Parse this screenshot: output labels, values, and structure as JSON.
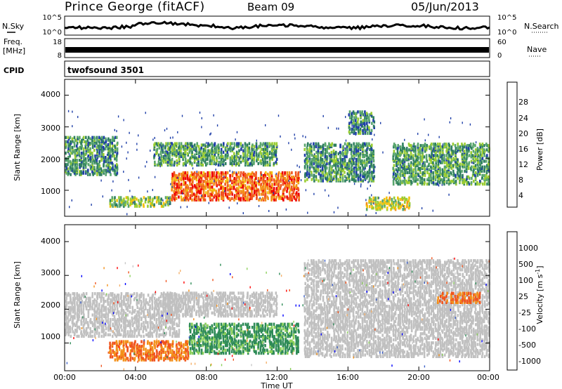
{
  "header": {
    "station": "Prince George (fitACF)",
    "beam": "Beam 09",
    "date": "05/Jun/2013"
  },
  "panels": {
    "nsky_label": "N.Sky",
    "nsearch_label": "N.Search",
    "freq_label_1": "Freq.",
    "freq_label_2": "[MHz]",
    "nave_label": "Nave",
    "cpid_label": "CPID",
    "cpid_value": "twofsound 3501",
    "noise_ticks": [
      "10^5",
      "10^0"
    ],
    "freq_ticks": [
      "18",
      "8"
    ],
    "nave_ticks": [
      "60",
      "0"
    ]
  },
  "colors": {
    "power_scale": [
      "#0000ff",
      "#1f3fa8",
      "#2f7f5f",
      "#5aa66e",
      "#9acd32",
      "#f4c20d",
      "#f39019",
      "#f0541e",
      "#ee0000"
    ],
    "velocity_scale": [
      "#ff0000",
      "#f0541e",
      "#f39019",
      "#f5b06a",
      "#c8c8c8",
      "#8bd05a",
      "#2e8b57",
      "#3b5fc8",
      "#0000ff"
    ],
    "ground_scatter": "#c0c0c0"
  },
  "chart_data": [
    {
      "type": "heatmap",
      "name": "power",
      "x_unit": "UT",
      "xlim": [
        "00:00",
        "00:00"
      ],
      "ylim": [
        180,
        4500
      ],
      "y_ticks": [
        1000,
        2000,
        3000,
        4000
      ],
      "x_ticks": [
        "00:00",
        "04:00",
        "08:00",
        "12:00",
        "16:00",
        "20:00",
        "00:00"
      ],
      "ylabel": "Slant Range [km]",
      "colorbar_label": "Power [dB]",
      "colorbar_ticks": [
        4,
        8,
        12,
        16,
        20,
        24,
        28
      ],
      "clim": [
        0,
        30
      ],
      "echo_regions": [
        {
          "t_start": 0.0,
          "t_end": 3.0,
          "r_start": 1500,
          "r_end": 2700,
          "mean_db": 10
        },
        {
          "t_start": 2.5,
          "t_end": 6.0,
          "r_start": 500,
          "r_end": 800,
          "mean_db": 14
        },
        {
          "t_start": 6.0,
          "t_end": 13.3,
          "r_start": 700,
          "r_end": 1600,
          "mean_db": 24
        },
        {
          "t_start": 5.0,
          "t_end": 12.0,
          "r_start": 1800,
          "r_end": 2500,
          "mean_db": 11
        },
        {
          "t_start": 13.5,
          "t_end": 17.5,
          "r_start": 1300,
          "r_end": 2500,
          "mean_db": 10
        },
        {
          "t_start": 16.0,
          "t_end": 17.5,
          "r_start": 2800,
          "r_end": 3500,
          "mean_db": 9
        },
        {
          "t_start": 18.5,
          "t_end": 24.0,
          "r_start": 1200,
          "r_end": 2500,
          "mean_db": 11
        },
        {
          "t_start": 17.0,
          "t_end": 19.5,
          "r_start": 400,
          "r_end": 800,
          "mean_db": 16
        }
      ]
    },
    {
      "type": "heatmap",
      "name": "velocity",
      "x_unit": "UT",
      "xlim": [
        "00:00",
        "00:00"
      ],
      "ylim": [
        180,
        4500
      ],
      "y_ticks": [
        1000,
        2000,
        3000,
        4000
      ],
      "x_ticks": [
        "00:00",
        "04:00",
        "08:00",
        "12:00",
        "16:00",
        "20:00",
        "00:00"
      ],
      "ylabel": "Slant Range [km]",
      "xlabel": "Time UT",
      "colorbar_label": "Velocity [m s^-1]",
      "colorbar_ticks": [
        -1000,
        -500,
        -100,
        -25,
        25,
        100,
        500,
        1000
      ],
      "colorbar_tick_labels": [
        "-1000",
        "-500",
        "-100",
        "-25",
        "25",
        "100",
        "500",
        "1000"
      ],
      "echo_regions": [
        {
          "t_start": 0.0,
          "t_end": 6.5,
          "r_start": 1200,
          "r_end": 2500,
          "class": "ground_scatter"
        },
        {
          "t_start": 2.5,
          "t_end": 7.0,
          "r_start": 500,
          "r_end": 1100,
          "mean_velocity": -250
        },
        {
          "t_start": 7.0,
          "t_end": 13.3,
          "r_start": 700,
          "r_end": 1600,
          "mean_velocity": 150
        },
        {
          "t_start": 5.5,
          "t_end": 12.0,
          "r_start": 1800,
          "r_end": 2500,
          "class": "ground_scatter"
        },
        {
          "t_start": 13.5,
          "t_end": 24.0,
          "r_start": 600,
          "r_end": 3500,
          "class": "ground_scatter"
        },
        {
          "t_start": 21.0,
          "t_end": 23.5,
          "r_start": 2200,
          "r_end": 2500,
          "mean_velocity": -200
        }
      ]
    }
  ],
  "xaxis": {
    "tick_labels": [
      "00:00",
      "04:00",
      "08:00",
      "12:00",
      "16:00",
      "20:00",
      "00:00"
    ],
    "label": "Time UT"
  },
  "power_axis": {
    "label": "Slant Range [km]",
    "ticks": [
      "4000",
      "3000",
      "2000",
      "1000"
    ],
    "cb_label": "Power [dB]",
    "cb_ticks": [
      "28",
      "24",
      "20",
      "16",
      "12",
      "8",
      "4"
    ]
  },
  "velocity_axis": {
    "label": "Slant Range [km]",
    "ticks": [
      "4000",
      "3000",
      "2000",
      "1000"
    ],
    "cb_label": "Velocity",
    "cb_unit": "[m s",
    "cb_unit_sup": "-1",
    "cb_unit_end": "]",
    "cb_ticks": [
      "1000",
      "500",
      "100",
      "25",
      "-25",
      "-100",
      "-500",
      "-1000"
    ]
  }
}
